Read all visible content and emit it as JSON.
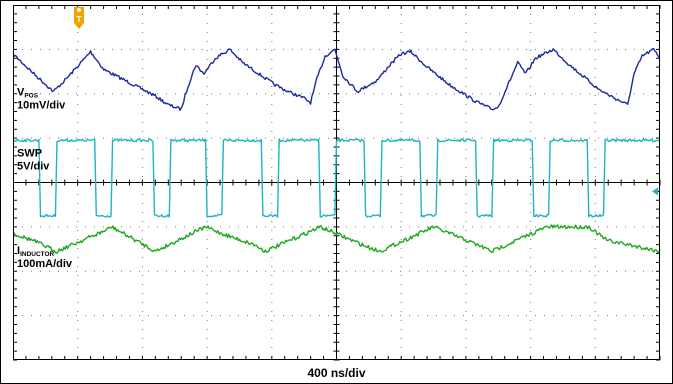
{
  "chart_data": {
    "type": "line",
    "title": "",
    "grid": true,
    "x_unit": "ns",
    "x_per_div": 400,
    "x_divisions": 10,
    "y_divisions": 8,
    "timebase_label": "400 ns/div",
    "trigger_marker": "T",
    "series": [
      {
        "name": "V",
        "name_sub": "POS",
        "scale": "10mV/div",
        "color": "#1c2aa0",
        "noise": 0.035,
        "points": [
          [
            0,
            1.1
          ],
          [
            100,
            1.45
          ],
          [
            250,
            1.95
          ],
          [
            320,
            1.7
          ],
          [
            420,
            1.3
          ],
          [
            480,
            1.05
          ],
          [
            560,
            1.45
          ],
          [
            720,
            1.75
          ],
          [
            880,
            2.05
          ],
          [
            960,
            2.25
          ],
          [
            1040,
            2.35
          ],
          [
            1080,
            1.85
          ],
          [
            1130,
            1.35
          ],
          [
            1180,
            1.55
          ],
          [
            1250,
            1.2
          ],
          [
            1340,
            1.0
          ],
          [
            1420,
            1.3
          ],
          [
            1520,
            1.55
          ],
          [
            1620,
            1.8
          ],
          [
            1700,
            1.95
          ],
          [
            1800,
            2.1
          ],
          [
            1840,
            2.2
          ],
          [
            1880,
            1.65
          ],
          [
            1930,
            1.15
          ],
          [
            1990,
            1.0
          ],
          [
            2040,
            1.6
          ],
          [
            2130,
            1.95
          ],
          [
            2250,
            1.7
          ],
          [
            2330,
            1.35
          ],
          [
            2400,
            1.1
          ],
          [
            2460,
            1.05
          ],
          [
            2560,
            1.4
          ],
          [
            2700,
            1.8
          ],
          [
            2850,
            2.15
          ],
          [
            2960,
            2.35
          ],
          [
            3000,
            2.3
          ],
          [
            3060,
            1.8
          ],
          [
            3120,
            1.3
          ],
          [
            3170,
            1.55
          ],
          [
            3230,
            1.2
          ],
          [
            3340,
            1.0
          ],
          [
            3440,
            1.35
          ],
          [
            3540,
            1.65
          ],
          [
            3620,
            1.9
          ],
          [
            3720,
            2.1
          ],
          [
            3800,
            2.25
          ],
          [
            3840,
            1.55
          ],
          [
            3890,
            1.15
          ],
          [
            3960,
            1.0
          ],
          [
            4000,
            1.2
          ]
        ]
      },
      {
        "name": "SWP",
        "name_sub": "",
        "scale": "5V/div",
        "color": "#1fb5c0",
        "noise": 0.03,
        "offset_arrow": true,
        "points": [
          [
            0,
            3.05
          ],
          [
            160,
            3.05
          ],
          [
            170,
            4.75
          ],
          [
            262,
            4.75
          ],
          [
            272,
            3.05
          ],
          [
            505,
            3.05
          ],
          [
            515,
            4.75
          ],
          [
            606,
            4.75
          ],
          [
            616,
            3.05
          ],
          [
            865,
            3.05
          ],
          [
            875,
            4.75
          ],
          [
            966,
            4.75
          ],
          [
            976,
            3.05
          ],
          [
            1190,
            3.05
          ],
          [
            1200,
            4.75
          ],
          [
            1291,
            4.75
          ],
          [
            1301,
            3.05
          ],
          [
            1535,
            3.05
          ],
          [
            1545,
            4.75
          ],
          [
            1636,
            4.75
          ],
          [
            1646,
            3.05
          ],
          [
            1890,
            3.05
          ],
          [
            1900,
            4.75
          ],
          [
            1990,
            4.75
          ],
          [
            2000,
            3.05
          ],
          [
            2170,
            3.05
          ],
          [
            2180,
            4.75
          ],
          [
            2271,
            4.75
          ],
          [
            2281,
            3.05
          ],
          [
            2515,
            3.05
          ],
          [
            2525,
            4.75
          ],
          [
            2616,
            4.75
          ],
          [
            2626,
            3.05
          ],
          [
            2860,
            3.05
          ],
          [
            2870,
            4.75
          ],
          [
            2961,
            4.75
          ],
          [
            2971,
            3.05
          ],
          [
            3210,
            3.05
          ],
          [
            3220,
            4.75
          ],
          [
            3311,
            4.75
          ],
          [
            3321,
            3.05
          ],
          [
            3550,
            3.05
          ],
          [
            3560,
            4.75
          ],
          [
            3651,
            4.75
          ],
          [
            3661,
            3.05
          ],
          [
            4000,
            3.05
          ]
        ]
      },
      {
        "name": "I",
        "name_sub": "INDUCTOR",
        "scale": "100mA/div",
        "color": "#1ea81e",
        "noise": 0.045,
        "points": [
          [
            0,
            5.15
          ],
          [
            120,
            5.3
          ],
          [
            270,
            5.55
          ],
          [
            560,
            5.1
          ],
          [
            610,
            5.0
          ],
          [
            880,
            5.55
          ],
          [
            1190,
            5.0
          ],
          [
            1290,
            5.15
          ],
          [
            1490,
            5.4
          ],
          [
            1560,
            5.55
          ],
          [
            1900,
            5.0
          ],
          [
            2190,
            5.45
          ],
          [
            2270,
            5.55
          ],
          [
            2600,
            5.0
          ],
          [
            2900,
            5.45
          ],
          [
            2960,
            5.55
          ],
          [
            3300,
            5.0
          ],
          [
            3560,
            5.0
          ],
          [
            3650,
            5.25
          ],
          [
            3670,
            5.3
          ],
          [
            4000,
            5.55
          ]
        ]
      }
    ]
  }
}
